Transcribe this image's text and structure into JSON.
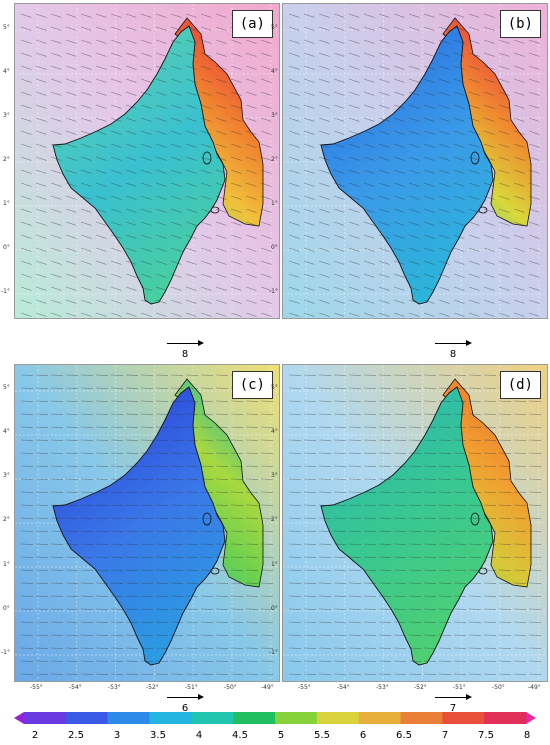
{
  "panels": [
    {
      "label": "(a)",
      "ref_vector": "8",
      "scheme": "warm"
    },
    {
      "label": "(b)",
      "ref_vector": "8",
      "scheme": "mixed"
    },
    {
      "label": "(c)",
      "ref_vector": "6",
      "scheme": "cool"
    },
    {
      "label": "(d)",
      "ref_vector": "7",
      "scheme": "mid"
    }
  ],
  "y_ticks": [
    "5°",
    "4°",
    "3°",
    "2°",
    "1°",
    "0°",
    "-1°"
  ],
  "x_ticks": [
    "-55°",
    "-54°",
    "-53°",
    "-52°",
    "-51°",
    "-50°",
    "-49°"
  ],
  "colorbar": {
    "ticks": [
      "2",
      "2.5",
      "3",
      "3.5",
      "4",
      "4.5",
      "5",
      "5.5",
      "6",
      "6.5",
      "7",
      "7.5",
      "8"
    ],
    "colors": [
      "#9a1fd9",
      "#6b3ae0",
      "#3a5ae6",
      "#2d8ae8",
      "#23b6e0",
      "#22c6b0",
      "#20c060",
      "#86d23a",
      "#d9d23a",
      "#e8b03a",
      "#ea7f3a",
      "#e8503a",
      "#e0305a",
      "#e82a9a"
    ]
  }
}
